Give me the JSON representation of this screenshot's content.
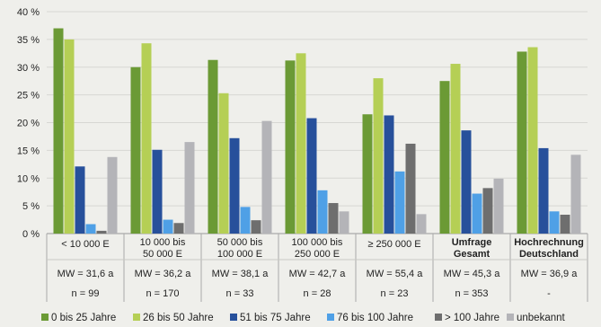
{
  "chart_data": {
    "type": "bar",
    "ylim": [
      0,
      40
    ],
    "yticks": [
      "0 %",
      "5 %",
      "10 %",
      "15 %",
      "20 %",
      "25 %",
      "30 %",
      "35 %",
      "40 %"
    ],
    "grid": true,
    "legend_position": "bottom",
    "categories": [
      [
        "< 10 000 E"
      ],
      [
        "10 000 bis",
        "50 000 E"
      ],
      [
        "50 000 bis",
        "100 000 E"
      ],
      [
        "100 000 bis",
        "250 000 E"
      ],
      [
        "≥ 250 000 E"
      ],
      [
        "Umfrage",
        "Gesamt"
      ],
      [
        "Hochrechnung",
        "Deutschland"
      ]
    ],
    "mw_row": [
      "MW = 31,6 a",
      "MW = 36,2 a",
      "MW = 38,1 a",
      "MW = 42,7 a",
      "MW = 55,4 a",
      "MW = 45,3 a",
      "MW = 36,9 a"
    ],
    "n_row": [
      "n = 99",
      "n = 170",
      "n = 33",
      "n = 28",
      "n = 23",
      "n = 353",
      "-"
    ],
    "series": [
      {
        "name": "0 bis 25 Jahre",
        "color": "#6b9a35",
        "values": [
          37.0,
          30.0,
          31.3,
          31.2,
          21.5,
          27.5,
          32.8
        ]
      },
      {
        "name": "26 bis 50 Jahre",
        "color": "#b5cf55",
        "values": [
          35.0,
          34.3,
          25.3,
          32.5,
          28.0,
          30.6,
          33.6
        ]
      },
      {
        "name": "51 bis 75 Jahre",
        "color": "#27509b",
        "values": [
          12.1,
          15.1,
          17.2,
          20.8,
          21.3,
          18.6,
          15.4
        ]
      },
      {
        "name": "76 bis 100 Jahre",
        "color": "#4fa0e6",
        "values": [
          1.7,
          2.5,
          4.8,
          7.8,
          11.2,
          7.2,
          4.0
        ]
      },
      {
        "name": "> 100 Jahre",
        "color": "#6e6e6e",
        "values": [
          0.5,
          1.9,
          2.4,
          5.5,
          16.2,
          8.2,
          3.4
        ]
      },
      {
        "name": "unbekannt",
        "color": "#b4b4b8",
        "values": [
          13.8,
          16.5,
          20.3,
          4.0,
          3.5,
          9.9,
          14.2
        ]
      }
    ]
  }
}
